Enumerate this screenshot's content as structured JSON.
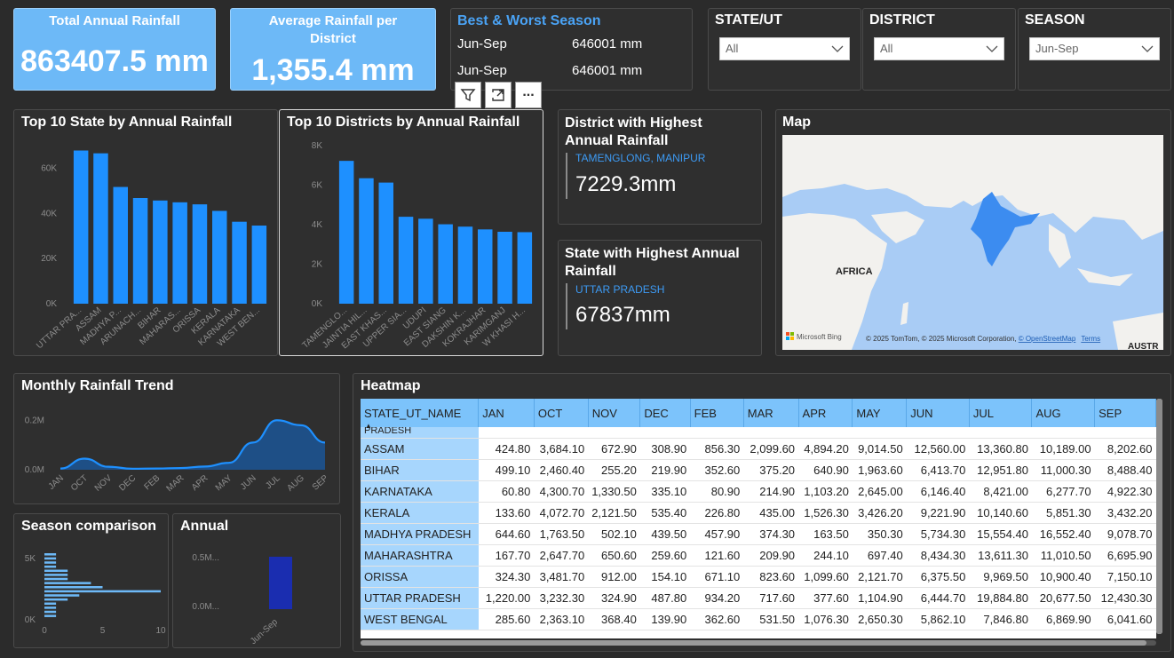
{
  "kpis": {
    "total": {
      "label": "Total Annual Rainfall",
      "value": "863407.5 mm"
    },
    "average": {
      "label": "Average Rainfall per District",
      "value": "1,355.4 mm"
    }
  },
  "best_worst": {
    "title": "Best & Worst Season",
    "rows": [
      {
        "season": "Jun-Sep",
        "value": "646001 mm"
      },
      {
        "season": "Jun-Sep",
        "value": "646001 mm"
      }
    ]
  },
  "slicers": {
    "state": {
      "title": "STATE/UT",
      "value": "All"
    },
    "district": {
      "title": "DISTRICT",
      "value": "All"
    },
    "season": {
      "title": "SEASON",
      "value": "Jun-Sep"
    }
  },
  "visual_toolbar": {
    "filter": "filter-icon",
    "focus": "focus-mode-icon",
    "more": "..."
  },
  "district_highest": {
    "title": "District with Highest Annual Rainfall",
    "name": "TAMENGLONG, MANIPUR",
    "value": "7229.3mm"
  },
  "state_highest": {
    "title": "State with Highest Annual Rainfall",
    "name": "UTTAR PRADESH",
    "value": "67837mm"
  },
  "map": {
    "title": "Map",
    "label_africa": "AFRICA",
    "label_austr": "AUSTR",
    "bing": "Microsoft Bing",
    "credit_prefix": "© 2025 TomTom, © 2025 Microsoft Corporation, ",
    "credit_link": "© OpenStreetMap",
    "terms": "Terms",
    "colors": {
      "land": "#f2f1ee",
      "water": "#a9ccf5",
      "india": "#3c8cf0"
    }
  },
  "heatmap": {
    "title": "Heatmap",
    "columns": [
      "STATE_UT_NAME",
      "JAN",
      "OCT",
      "NOV",
      "DEC",
      "FEB",
      "MAR",
      "APR",
      "MAY",
      "JUN",
      "JUL",
      "AUG",
      "SEP"
    ],
    "partial_row": "PRADESH",
    "rows": [
      [
        "ASSAM",
        "424.80",
        "3,684.10",
        "672.90",
        "308.90",
        "856.30",
        "2,099.60",
        "4,894.20",
        "9,014.50",
        "12,560.00",
        "13,360.80",
        "10,189.00",
        "8,202.60"
      ],
      [
        "BIHAR",
        "499.10",
        "2,460.40",
        "255.20",
        "219.90",
        "352.60",
        "375.20",
        "640.90",
        "1,963.60",
        "6,413.70",
        "12,951.80",
        "11,000.30",
        "8,488.40"
      ],
      [
        "KARNATAKA",
        "60.80",
        "4,300.70",
        "1,330.50",
        "335.10",
        "80.90",
        "214.90",
        "1,103.20",
        "2,645.00",
        "6,146.40",
        "8,421.00",
        "6,277.70",
        "4,922.30"
      ],
      [
        "KERALA",
        "133.60",
        "4,072.70",
        "2,121.50",
        "535.40",
        "226.80",
        "435.00",
        "1,526.30",
        "3,426.20",
        "9,221.90",
        "10,140.60",
        "5,851.30",
        "3,432.20"
      ],
      [
        "MADHYA PRADESH",
        "644.60",
        "1,763.50",
        "502.10",
        "439.50",
        "457.90",
        "374.30",
        "163.50",
        "350.30",
        "5,734.30",
        "15,554.40",
        "16,552.40",
        "9,078.70"
      ],
      [
        "MAHARASHTRA",
        "167.70",
        "2,647.70",
        "650.60",
        "259.60",
        "121.60",
        "209.90",
        "244.10",
        "697.40",
        "8,434.30",
        "13,611.30",
        "11,010.50",
        "6,695.90"
      ],
      [
        "ORISSA",
        "324.30",
        "3,481.70",
        "912.00",
        "154.10",
        "671.10",
        "823.60",
        "1,099.60",
        "2,121.70",
        "6,375.50",
        "9,969.50",
        "10,900.40",
        "7,150.10"
      ],
      [
        "UTTAR PRADESH",
        "1,220.00",
        "3,232.30",
        "324.90",
        "487.80",
        "934.20",
        "717.60",
        "377.60",
        "1,104.90",
        "6,444.70",
        "19,884.80",
        "20,677.50",
        "12,430.30"
      ],
      [
        "WEST BENGAL",
        "285.60",
        "2,363.10",
        "368.40",
        "139.90",
        "362.60",
        "531.50",
        "1,076.30",
        "2,650.30",
        "5,862.10",
        "7,846.80",
        "6,869.90",
        "6,041.60"
      ]
    ]
  },
  "chart_data": [
    {
      "id": "top_states",
      "type": "bar",
      "title": "Top 10 State by Annual Rainfall",
      "categories": [
        "UTTAR PRA...",
        "ASSAM",
        "MADHYA P...",
        "ARUNACH...",
        "BIHAR",
        "MAHARAS...",
        "ORISSA",
        "KERALA",
        "KARNATAKA",
        "WEST BEN..."
      ],
      "values": [
        67837,
        66600,
        51700,
        46800,
        45700,
        44900,
        44000,
        41100,
        36300,
        34600
      ],
      "ylim": [
        0,
        70000
      ],
      "yticks": [
        0,
        20000,
        40000,
        60000
      ],
      "yticklabels": [
        "0K",
        "20K",
        "40K",
        "60K"
      ]
    },
    {
      "id": "top_districts",
      "type": "bar",
      "title": "Top 10 Districts by Annual Rainfall",
      "categories": [
        "TAMENGLO...",
        "JAINTIA HIL...",
        "EAST KHAS...",
        "UPPER SIA...",
        "UDUPI",
        "EAST SIANG",
        "DAKSHIN K...",
        "KOKRAJHAR",
        "KARIMGANJ",
        "W KHASI H..."
      ],
      "values": [
        7229.3,
        6350,
        6130,
        4400,
        4300,
        4020,
        3900,
        3760,
        3640,
        3620
      ],
      "ylim": [
        0,
        8000
      ],
      "yticks": [
        0,
        2000,
        4000,
        6000,
        8000
      ],
      "yticklabels": [
        "0K",
        "2K",
        "4K",
        "6K",
        "8K"
      ]
    },
    {
      "id": "monthly_trend",
      "type": "area",
      "title": "Monthly Rainfall Trend",
      "categories": [
        "JAN",
        "OCT",
        "NOV",
        "DEC",
        "FEB",
        "MAR",
        "APR",
        "MAY",
        "JUN",
        "JUL",
        "AUG",
        "SEP"
      ],
      "values": [
        5000,
        45000,
        12000,
        4000,
        5000,
        7000,
        13000,
        28000,
        110000,
        200000,
        180000,
        110000
      ],
      "ylim": [
        0,
        280000
      ],
      "yticks": [
        0,
        200000
      ],
      "yticklabels": [
        "0.0M",
        "0.2M"
      ]
    },
    {
      "id": "season_comparison",
      "type": "bar",
      "orientation": "horizontal",
      "title": "Season comparison",
      "values": [
        1,
        1,
        1,
        1,
        2,
        2,
        2,
        4,
        5,
        10,
        3,
        2,
        1,
        1,
        1,
        1
      ],
      "xlim": [
        0,
        10
      ],
      "xticks": [
        0,
        5,
        10
      ],
      "xticklabels": [
        "0",
        "5",
        "10"
      ],
      "yticklabels": [
        "0K",
        "5K"
      ]
    },
    {
      "id": "annual",
      "type": "bar",
      "title": "Annual",
      "categories": [
        "Jun-Sep"
      ],
      "values": [
        0.646001
      ],
      "ylim": [
        0,
        0.8
      ],
      "yticks": [
        0,
        0.5
      ],
      "yticklabels": [
        "0.0M...",
        "0.5M..."
      ],
      "color": "#1a2db0"
    }
  ]
}
